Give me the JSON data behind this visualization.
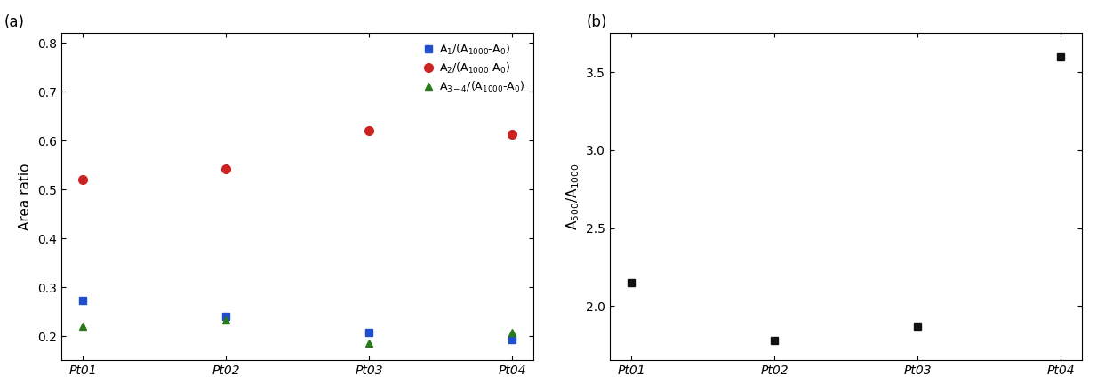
{
  "categories": [
    "Pt01",
    "Pt02",
    "Pt03",
    "Pt04"
  ],
  "panel_a": {
    "blue_squares": [
      0.272,
      0.24,
      0.207,
      0.193
    ],
    "red_circles": [
      0.52,
      0.543,
      0.62,
      0.614
    ],
    "green_triangles": [
      0.22,
      0.232,
      0.185,
      0.208
    ],
    "ylabel": "Area ratio",
    "ylim": [
      0.15,
      0.82
    ],
    "yticks": [
      0.2,
      0.3,
      0.4,
      0.5,
      0.6,
      0.7,
      0.8
    ],
    "legend_labels": [
      "A$_1$/(A$_{1000}$-A$_0$)",
      "A$_2$/(A$_{1000}$-A$_0$)",
      "A$_{3-4}$/(A$_{1000}$-A$_0$)"
    ],
    "panel_label": "(a)"
  },
  "panel_b": {
    "black_squares": [
      2.15,
      1.78,
      1.87,
      3.6
    ],
    "ylabel": "A$_{500}$/A$_{1000}$",
    "ylim": [
      1.65,
      3.75
    ],
    "yticks": [
      2.0,
      2.5,
      3.0,
      3.5
    ],
    "panel_label": "(b)"
  },
  "blue_color": "#1f4fcc",
  "red_color": "#cc2222",
  "green_color": "#2a7a1a",
  "black_color": "#111111",
  "marker_size": 7,
  "figsize": [
    12.34,
    4.41
  ],
  "dpi": 100
}
